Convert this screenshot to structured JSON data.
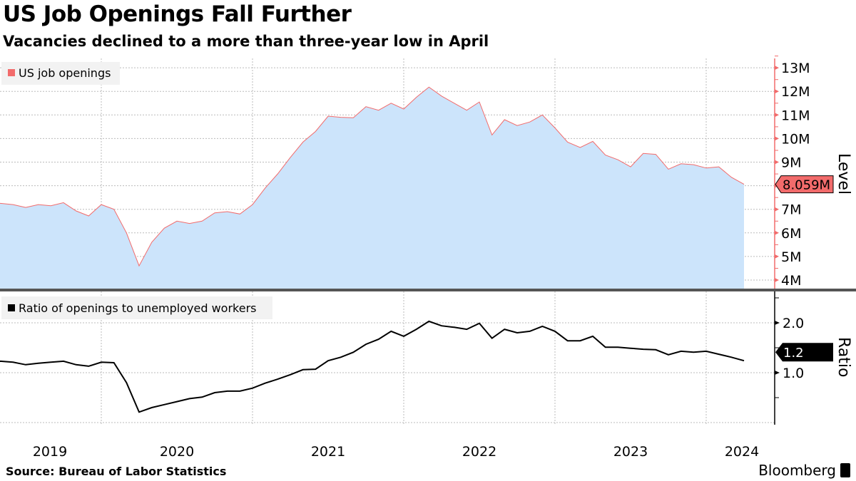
{
  "title": "US Job Openings Fall Further",
  "subtitle": "Vacancies declined to a more than three-year low in April",
  "source": "Source: Bureau of Labor Statistics",
  "logo": "Bloomberg",
  "colors": {
    "openings_line": "#f26b6b",
    "openings_fill": "#cce4fb",
    "ratio_line": "#000000",
    "level_axis": "#f26b6b"
  },
  "chart_data": [
    {
      "type": "area",
      "ylabel": "Level",
      "ylim": [
        4,
        13
      ],
      "yticks": [
        "4M",
        "5M",
        "6M",
        "7M",
        "8M",
        "9M",
        "10M",
        "11M",
        "12M",
        "13M"
      ],
      "yticks_shown": [
        "13M",
        "12M",
        "11M",
        "10M",
        "9M",
        "7M",
        "6M",
        "5M",
        "4M"
      ],
      "grid": true,
      "legend": {
        "placement": "top-left",
        "entries": [
          "US job openings"
        ]
      },
      "last_value_label": "8.059M",
      "x_start": "2019-04",
      "x_end": "2024-04",
      "series": [
        {
          "name": "US job openings",
          "unit": "millions",
          "values": [
            7.3,
            7.25,
            7.2,
            7.08,
            7.2,
            7.15,
            7.28,
            6.93,
            6.72,
            7.2,
            7.0,
            6.0,
            4.6,
            5.6,
            6.2,
            6.5,
            6.4,
            6.5,
            6.85,
            6.9,
            6.8,
            7.2,
            7.9,
            8.5,
            9.2,
            9.85,
            10.3,
            10.95,
            10.9,
            10.88,
            11.35,
            11.2,
            11.5,
            11.25,
            11.75,
            12.18,
            11.8,
            11.5,
            11.2,
            11.55,
            10.15,
            10.8,
            10.55,
            10.7,
            11.0,
            10.45,
            9.85,
            9.62,
            9.88,
            9.3,
            9.1,
            8.8,
            9.37,
            9.33,
            8.7,
            8.93,
            8.89,
            8.75,
            8.8,
            8.36,
            8.059
          ]
        }
      ]
    },
    {
      "type": "line",
      "ylabel": "Ratio",
      "ylim": [
        0,
        2.6
      ],
      "yticks": [
        "1.0",
        "2.0"
      ],
      "grid": true,
      "legend": {
        "placement": "top-left",
        "entries": [
          "Ratio of openings to unemployed workers"
        ]
      },
      "last_value_label": "1.2",
      "x_start": "2019-04",
      "x_end": "2024-04",
      "xticks": [
        "2019",
        "2020",
        "2021",
        "2022",
        "2023",
        "2024"
      ],
      "series": [
        {
          "name": "Ratio of openings to unemployed workers",
          "values": [
            1.21,
            1.23,
            1.21,
            1.16,
            1.19,
            1.21,
            1.23,
            1.16,
            1.13,
            1.21,
            1.2,
            0.8,
            0.21,
            0.3,
            0.36,
            0.42,
            0.48,
            0.51,
            0.6,
            0.63,
            0.63,
            0.69,
            0.79,
            0.87,
            0.96,
            1.06,
            1.07,
            1.24,
            1.31,
            1.41,
            1.57,
            1.67,
            1.83,
            1.73,
            1.87,
            2.03,
            1.94,
            1.91,
            1.87,
            1.99,
            1.69,
            1.87,
            1.8,
            1.83,
            1.93,
            1.83,
            1.64,
            1.64,
            1.73,
            1.51,
            1.51,
            1.49,
            1.47,
            1.46,
            1.36,
            1.43,
            1.41,
            1.43,
            1.37,
            1.31,
            1.24
          ]
        }
      ]
    }
  ]
}
